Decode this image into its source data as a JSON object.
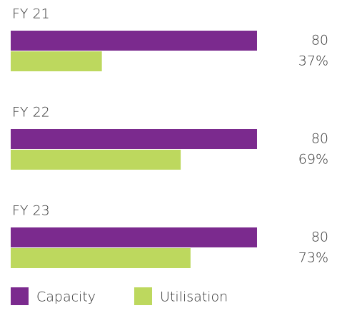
{
  "chart_data": {
    "type": "bar",
    "categories": [
      "FY 21",
      "FY 22",
      "FY 23"
    ],
    "series": [
      {
        "name": "Capacity",
        "color": "#7b2a8e",
        "values": [
          80,
          80,
          80
        ]
      },
      {
        "name": "Utilisation",
        "color": "#bdd85e",
        "values": [
          37,
          69,
          73
        ],
        "value_labels": [
          "37%",
          "69%",
          "73%"
        ]
      }
    ]
  }
}
